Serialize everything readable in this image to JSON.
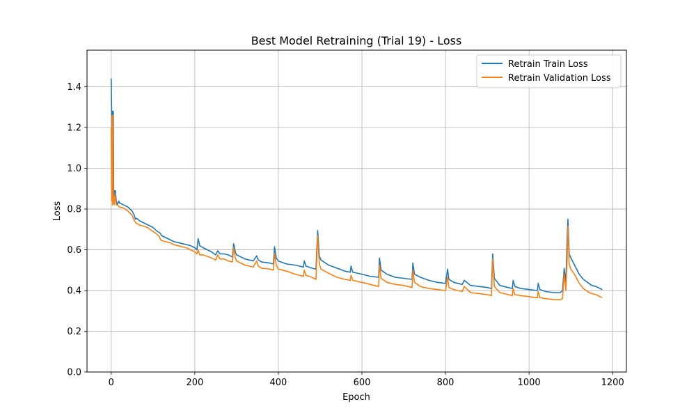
{
  "chart_data": {
    "type": "line",
    "title": "Best Model Retraining (Trial 19) - Loss",
    "xlabel": "Epoch",
    "ylabel": "Loss",
    "xlim": [
      -58,
      1233
    ],
    "ylim": [
      0,
      1.58
    ],
    "grid": true,
    "legend_position": "top-right",
    "x_ticks": [
      0,
      200,
      400,
      600,
      800,
      1000,
      1200
    ],
    "x_tick_labels": [
      "0",
      "200",
      "400",
      "600",
      "800",
      "1000",
      "1200"
    ],
    "y_ticks": [
      0.0,
      0.2,
      0.4,
      0.6,
      0.8,
      1.0,
      1.2,
      1.4
    ],
    "y_tick_labels": [
      "0.0",
      "0.2",
      "0.4",
      "0.6",
      "0.8",
      "1.0",
      "1.2",
      "1.4"
    ],
    "series": [
      {
        "name": "Retrain Train Loss",
        "color": "#1f77b4",
        "points": [
          [
            0,
            1.44
          ],
          [
            2,
            1.1
          ],
          [
            3,
            1.28
          ],
          [
            4,
            0.88
          ],
          [
            5,
            1.28
          ],
          [
            6,
            0.86
          ],
          [
            8,
            0.89
          ],
          [
            10,
            0.89
          ],
          [
            12,
            0.84
          ],
          [
            15,
            0.82
          ],
          [
            18,
            0.84
          ],
          [
            20,
            0.83
          ],
          [
            30,
            0.82
          ],
          [
            40,
            0.81
          ],
          [
            50,
            0.79
          ],
          [
            55,
            0.77
          ],
          [
            58,
            0.75
          ],
          [
            60,
            0.755
          ],
          [
            70,
            0.74
          ],
          [
            80,
            0.73
          ],
          [
            90,
            0.72
          ],
          [
            100,
            0.71
          ],
          [
            110,
            0.69
          ],
          [
            115,
            0.685
          ],
          [
            118,
            0.68
          ],
          [
            120,
            0.67
          ],
          [
            130,
            0.66
          ],
          [
            140,
            0.65
          ],
          [
            150,
            0.64
          ],
          [
            160,
            0.635
          ],
          [
            170,
            0.63
          ],
          [
            180,
            0.625
          ],
          [
            190,
            0.62
          ],
          [
            200,
            0.61
          ],
          [
            205,
            0.6
          ],
          [
            208,
            0.655
          ],
          [
            212,
            0.62
          ],
          [
            220,
            0.61
          ],
          [
            240,
            0.59
          ],
          [
            250,
            0.575
          ],
          [
            255,
            0.595
          ],
          [
            260,
            0.58
          ],
          [
            270,
            0.58
          ],
          [
            280,
            0.575
          ],
          [
            290,
            0.565
          ],
          [
            293,
            0.63
          ],
          [
            297,
            0.59
          ],
          [
            300,
            0.575
          ],
          [
            320,
            0.555
          ],
          [
            340,
            0.545
          ],
          [
            348,
            0.57
          ],
          [
            352,
            0.55
          ],
          [
            360,
            0.54
          ],
          [
            380,
            0.535
          ],
          [
            388,
            0.53
          ],
          [
            391,
            0.615
          ],
          [
            395,
            0.56
          ],
          [
            400,
            0.545
          ],
          [
            420,
            0.53
          ],
          [
            440,
            0.525
          ],
          [
            460,
            0.515
          ],
          [
            462,
            0.545
          ],
          [
            466,
            0.52
          ],
          [
            480,
            0.51
          ],
          [
            490,
            0.505
          ],
          [
            494,
            0.695
          ],
          [
            498,
            0.57
          ],
          [
            502,
            0.55
          ],
          [
            520,
            0.525
          ],
          [
            540,
            0.51
          ],
          [
            560,
            0.495
          ],
          [
            572,
            0.49
          ],
          [
            574,
            0.52
          ],
          [
            578,
            0.49
          ],
          [
            600,
            0.48
          ],
          [
            620,
            0.47
          ],
          [
            640,
            0.465
          ],
          [
            642,
            0.56
          ],
          [
            646,
            0.5
          ],
          [
            660,
            0.48
          ],
          [
            680,
            0.465
          ],
          [
            700,
            0.46
          ],
          [
            720,
            0.455
          ],
          [
            722,
            0.535
          ],
          [
            726,
            0.48
          ],
          [
            740,
            0.465
          ],
          [
            760,
            0.45
          ],
          [
            780,
            0.44
          ],
          [
            800,
            0.435
          ],
          [
            805,
            0.505
          ],
          [
            808,
            0.455
          ],
          [
            820,
            0.44
          ],
          [
            840,
            0.43
          ],
          [
            845,
            0.45
          ],
          [
            860,
            0.425
          ],
          [
            880,
            0.42
          ],
          [
            900,
            0.415
          ],
          [
            910,
            0.41
          ],
          [
            913,
            0.58
          ],
          [
            917,
            0.46
          ],
          [
            930,
            0.425
          ],
          [
            950,
            0.415
          ],
          [
            960,
            0.41
          ],
          [
            962,
            0.45
          ],
          [
            966,
            0.42
          ],
          [
            980,
            0.41
          ],
          [
            1000,
            0.405
          ],
          [
            1020,
            0.4
          ],
          [
            1022,
            0.435
          ],
          [
            1026,
            0.405
          ],
          [
            1040,
            0.395
          ],
          [
            1060,
            0.39
          ],
          [
            1075,
            0.39
          ],
          [
            1080,
            0.4
          ],
          [
            1084,
            0.51
          ],
          [
            1088,
            0.44
          ],
          [
            1091,
            0.65
          ],
          [
            1093,
            0.75
          ],
          [
            1096,
            0.58
          ],
          [
            1100,
            0.56
          ],
          [
            1110,
            0.52
          ],
          [
            1120,
            0.48
          ],
          [
            1130,
            0.455
          ],
          [
            1140,
            0.44
          ],
          [
            1150,
            0.425
          ],
          [
            1160,
            0.42
          ],
          [
            1170,
            0.41
          ],
          [
            1175,
            0.405
          ]
        ]
      },
      {
        "name": "Retrain Validation Loss",
        "color": "#ff7f0e",
        "points": [
          [
            0,
            1.2
          ],
          [
            1,
            0.84
          ],
          [
            2,
            1.26
          ],
          [
            3,
            0.82
          ],
          [
            4,
            1.26
          ],
          [
            5,
            0.85
          ],
          [
            7,
            0.82
          ],
          [
            9,
            0.87
          ],
          [
            12,
            0.82
          ],
          [
            15,
            0.82
          ],
          [
            20,
            0.81
          ],
          [
            30,
            0.805
          ],
          [
            40,
            0.79
          ],
          [
            50,
            0.77
          ],
          [
            55,
            0.745
          ],
          [
            60,
            0.73
          ],
          [
            70,
            0.72
          ],
          [
            80,
            0.715
          ],
          [
            90,
            0.705
          ],
          [
            100,
            0.69
          ],
          [
            110,
            0.675
          ],
          [
            115,
            0.665
          ],
          [
            118,
            0.65
          ],
          [
            120,
            0.645
          ],
          [
            130,
            0.64
          ],
          [
            140,
            0.635
          ],
          [
            150,
            0.625
          ],
          [
            160,
            0.62
          ],
          [
            170,
            0.615
          ],
          [
            180,
            0.61
          ],
          [
            190,
            0.6
          ],
          [
            200,
            0.59
          ],
          [
            205,
            0.58
          ],
          [
            208,
            0.6
          ],
          [
            212,
            0.575
          ],
          [
            220,
            0.575
          ],
          [
            240,
            0.56
          ],
          [
            250,
            0.55
          ],
          [
            255,
            0.575
          ],
          [
            260,
            0.555
          ],
          [
            270,
            0.555
          ],
          [
            280,
            0.545
          ],
          [
            290,
            0.54
          ],
          [
            293,
            0.61
          ],
          [
            297,
            0.56
          ],
          [
            300,
            0.545
          ],
          [
            320,
            0.525
          ],
          [
            340,
            0.515
          ],
          [
            348,
            0.545
          ],
          [
            352,
            0.52
          ],
          [
            360,
            0.51
          ],
          [
            380,
            0.505
          ],
          [
            388,
            0.5
          ],
          [
            391,
            0.58
          ],
          [
            395,
            0.525
          ],
          [
            400,
            0.505
          ],
          [
            420,
            0.495
          ],
          [
            440,
            0.48
          ],
          [
            460,
            0.47
          ],
          [
            462,
            0.5
          ],
          [
            466,
            0.475
          ],
          [
            480,
            0.465
          ],
          [
            490,
            0.455
          ],
          [
            494,
            0.67
          ],
          [
            498,
            0.53
          ],
          [
            502,
            0.505
          ],
          [
            520,
            0.485
          ],
          [
            540,
            0.465
          ],
          [
            560,
            0.455
          ],
          [
            572,
            0.45
          ],
          [
            574,
            0.475
          ],
          [
            578,
            0.45
          ],
          [
            600,
            0.44
          ],
          [
            620,
            0.43
          ],
          [
            640,
            0.42
          ],
          [
            642,
            0.525
          ],
          [
            646,
            0.46
          ],
          [
            660,
            0.44
          ],
          [
            680,
            0.43
          ],
          [
            700,
            0.425
          ],
          [
            720,
            0.415
          ],
          [
            722,
            0.5
          ],
          [
            726,
            0.44
          ],
          [
            740,
            0.42
          ],
          [
            760,
            0.41
          ],
          [
            780,
            0.405
          ],
          [
            800,
            0.4
          ],
          [
            805,
            0.465
          ],
          [
            808,
            0.415
          ],
          [
            820,
            0.405
          ],
          [
            840,
            0.395
          ],
          [
            845,
            0.42
          ],
          [
            860,
            0.39
          ],
          [
            880,
            0.385
          ],
          [
            900,
            0.38
          ],
          [
            910,
            0.375
          ],
          [
            913,
            0.555
          ],
          [
            917,
            0.42
          ],
          [
            930,
            0.39
          ],
          [
            950,
            0.38
          ],
          [
            960,
            0.375
          ],
          [
            962,
            0.41
          ],
          [
            966,
            0.38
          ],
          [
            980,
            0.375
          ],
          [
            1000,
            0.37
          ],
          [
            1020,
            0.365
          ],
          [
            1022,
            0.395
          ],
          [
            1026,
            0.365
          ],
          [
            1040,
            0.36
          ],
          [
            1060,
            0.355
          ],
          [
            1075,
            0.355
          ],
          [
            1080,
            0.36
          ],
          [
            1084,
            0.48
          ],
          [
            1088,
            0.4
          ],
          [
            1091,
            0.55
          ],
          [
            1093,
            0.715
          ],
          [
            1096,
            0.53
          ],
          [
            1100,
            0.505
          ],
          [
            1110,
            0.475
          ],
          [
            1120,
            0.435
          ],
          [
            1130,
            0.41
          ],
          [
            1140,
            0.395
          ],
          [
            1150,
            0.385
          ],
          [
            1160,
            0.38
          ],
          [
            1170,
            0.37
          ],
          [
            1175,
            0.365
          ]
        ]
      }
    ]
  }
}
